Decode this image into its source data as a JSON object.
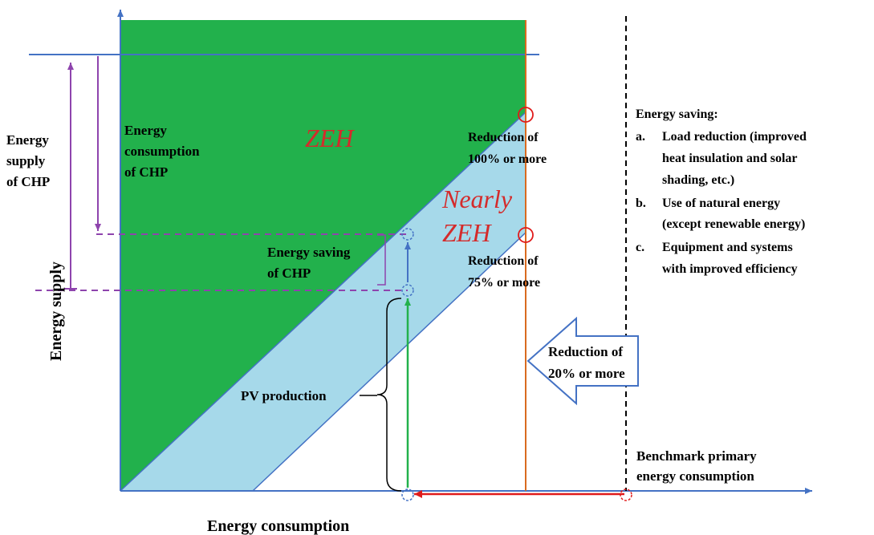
{
  "diagram": {
    "zones": {
      "zeh": "ZEH",
      "nearly_zeh_line1": "Nearly",
      "nearly_zeh_line2": "ZEH"
    },
    "labels": {
      "energy_consumption_chp": [
        "Energy",
        "consumption",
        "of CHP"
      ],
      "energy_supply_chp": [
        "Energy",
        "supply",
        "of CHP"
      ],
      "energy_saving_chp": [
        "Energy saving",
        "of CHP"
      ],
      "reduction_100": [
        "Reduction of",
        "100% or more"
      ],
      "reduction_75": [
        "Reduction of",
        "75% or more"
      ],
      "reduction_20": [
        "Reduction of",
        "20% or more"
      ],
      "pv_production": "PV production",
      "benchmark": [
        "Benchmark primary",
        "energy consumption"
      ]
    },
    "axes": {
      "x_label": "Energy consumption",
      "y_label": "Energy supply"
    },
    "legend_box": {
      "title": "Energy saving:",
      "items": [
        [
          "a.",
          "Load reduction (improved",
          "heat insulation and solar",
          "shading, etc.)"
        ],
        [
          "b.",
          "Use of natural energy",
          "(except renewable energy)"
        ],
        [
          "c.",
          "Equipment and systems",
          "with improved efficiency"
        ]
      ]
    },
    "colors": {
      "zeh_fill": "#22b14c",
      "nearly_zeh_fill": "#a6d9ea",
      "axis": "#4472c4",
      "chp_purple": "#8e44ad",
      "red_label": "#d42b2b",
      "orange_line": "#d96b20",
      "green_arrow": "#22b14c",
      "red_arrow": "#e01b1b"
    }
  }
}
